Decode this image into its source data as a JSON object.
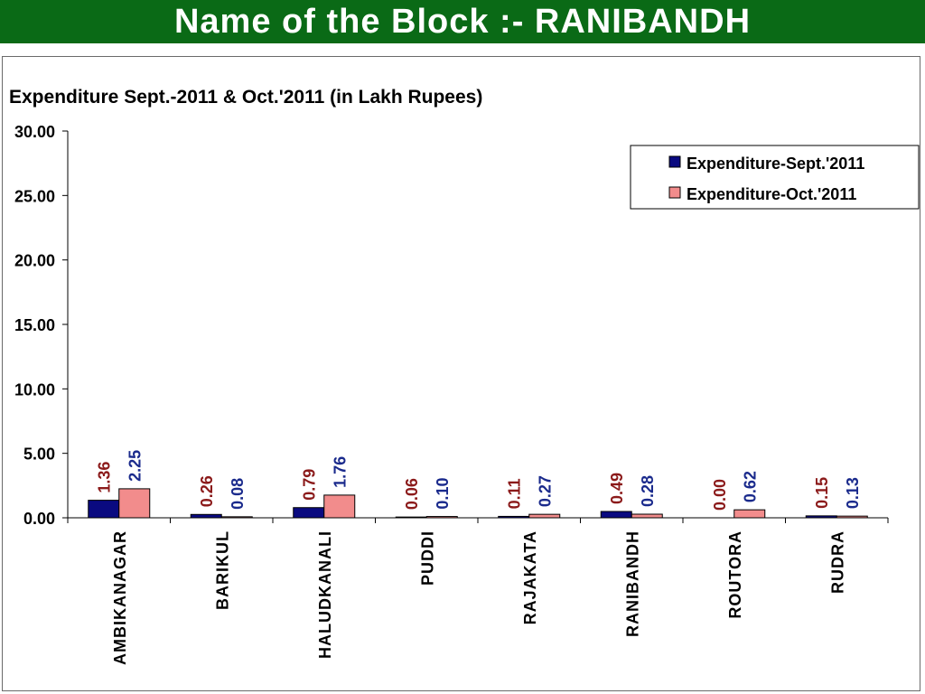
{
  "header": {
    "title": "Name of the Block :- RANIBANDH"
  },
  "chart_data": {
    "type": "bar",
    "title": "Expenditure Sept.-2011 & Oct.'2011 (in Lakh Rupees)",
    "xlabel": "",
    "ylabel": "",
    "ylim": [
      0,
      30
    ],
    "yticks": [
      "0.00",
      "5.00",
      "10.00",
      "15.00",
      "20.00",
      "25.00",
      "30.00"
    ],
    "grid": false,
    "legend_position": "top-right",
    "categories": [
      "AMBIKANAGAR",
      "BARIKUL",
      "HALUDKANALI",
      "PUDDI",
      "RAJAKATA",
      "RANIBANDH",
      "ROUTORA",
      "RUDRA"
    ],
    "series": [
      {
        "name": "Expenditure-Sept.'2011",
        "color": "#0a0a80",
        "label_color": "#8b1a1a",
        "values": [
          1.36,
          0.26,
          0.79,
          0.06,
          0.11,
          0.49,
          0.0,
          0.15
        ],
        "labels": [
          "1.36",
          "0.26",
          "0.79",
          "0.06",
          "0.11",
          "0.49",
          "0.00",
          "0.15"
        ]
      },
      {
        "name": "Expenditure-Oct.'2011",
        "color": "#f28c8c",
        "label_color": "#1a2a8c",
        "values": [
          2.25,
          0.08,
          1.76,
          0.1,
          0.27,
          0.28,
          0.62,
          0.13
        ],
        "labels": [
          "2.25",
          "0.08",
          "1.76",
          "0.10",
          "0.27",
          "0.28",
          "0.62",
          "0.13"
        ]
      }
    ]
  }
}
